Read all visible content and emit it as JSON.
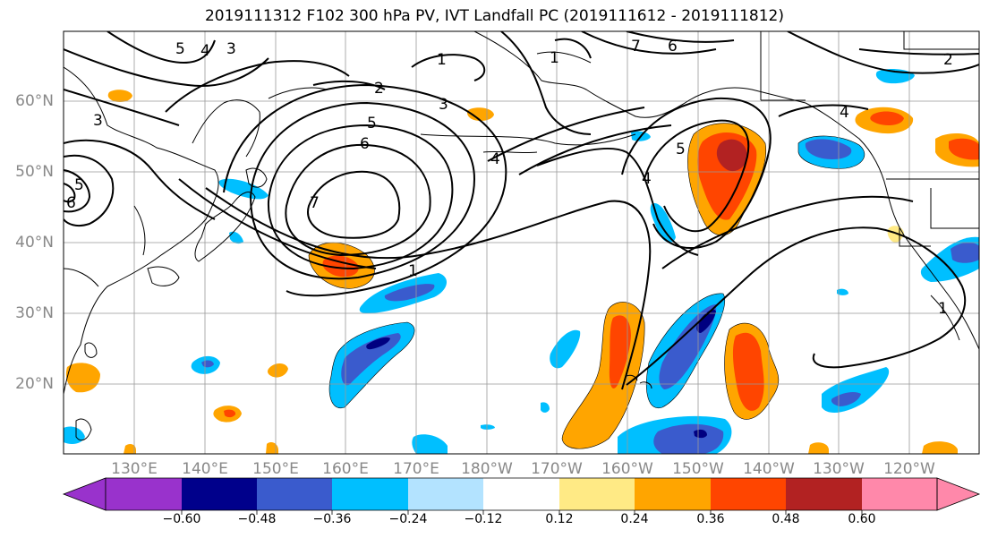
{
  "title": "2019111312 F102 300 hPa PV, IVT Landfall PC (2019111612 - 2019111812)",
  "map": {
    "lat_labels": [
      "60°N",
      "50°N",
      "40°N",
      "30°N",
      "20°N"
    ],
    "lon_labels": [
      "130°E",
      "140°E",
      "150°E",
      "160°E",
      "170°E",
      "180°W",
      "170°W",
      "160°W",
      "150°W",
      "140°W",
      "130°W",
      "120°W"
    ],
    "lat_range": [
      10,
      70
    ],
    "lon_range": [
      120,
      250
    ],
    "contour_labels": [
      "5",
      "4",
      "3",
      "3",
      "2",
      "1",
      "5",
      "6",
      "7",
      "1",
      "7",
      "6",
      "5",
      "4",
      "4",
      "2",
      "4",
      "1",
      "6",
      "5",
      "3",
      "1"
    ],
    "pc_colors": {
      "neg_strong": "#000080",
      "neg_high": "#3a5bcd",
      "neg_mid": "#00bfff",
      "neg_low": "#b3e3ff",
      "pos_low": "#ffea85",
      "pos_mid": "#ffa500",
      "pos_high": "#ff4500",
      "pos_strong": "#b22222"
    }
  },
  "colorbar": {
    "ticks": [
      "−0.60",
      "−0.48",
      "−0.36",
      "−0.24",
      "−0.12",
      "0.12",
      "0.24",
      "0.36",
      "0.48",
      "0.60"
    ],
    "colors": [
      "#9932cc",
      "#00008b",
      "#3a5bcd",
      "#00bfff",
      "#b3e3ff",
      "#ffffff",
      "#ffea85",
      "#ffa500",
      "#ff4500",
      "#b22222",
      "#ff88aa"
    ]
  }
}
